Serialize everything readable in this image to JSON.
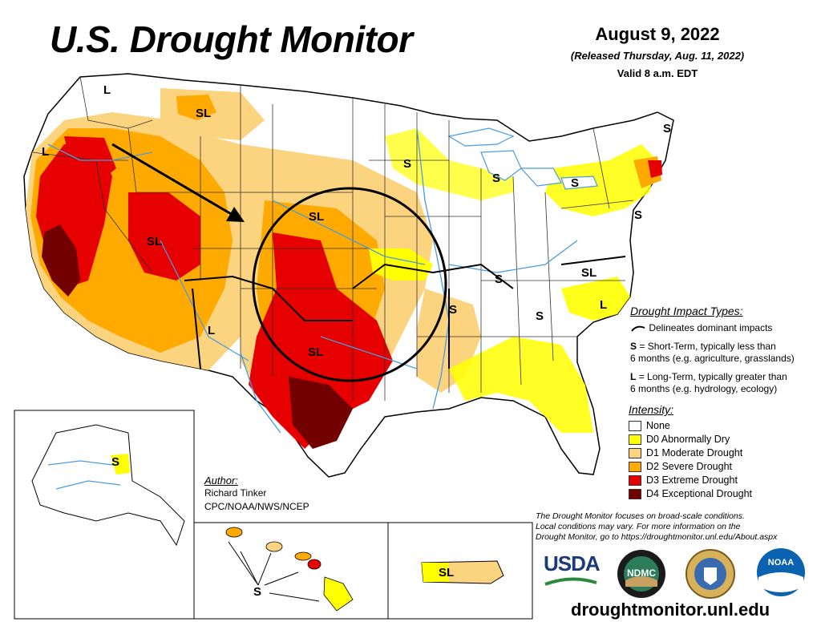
{
  "title": "U.S. Drought Monitor",
  "date": "August 9, 2022",
  "released": "(Released Thursday, Aug. 11, 2022)",
  "valid": "Valid 8 a.m. EDT",
  "impact_types": {
    "heading": "Drought Impact Types:",
    "delineates": "Delineates dominant impacts",
    "short_term_key": "S",
    "short_term_text": "= Short-Term, typically less than",
    "short_term_text2": "6 months (e.g. agriculture, grasslands)",
    "long_term_key": "L",
    "long_term_text": "= Long-Term, typically greater than",
    "long_term_text2": "6 months (e.g. hydrology, ecology)"
  },
  "intensity": {
    "heading": "Intensity:",
    "levels": [
      {
        "label": "None",
        "color": "#ffffff"
      },
      {
        "label": "D0 Abnormally Dry",
        "color": "#ffff00"
      },
      {
        "label": "D1 Moderate Drought",
        "color": "#fcd37f"
      },
      {
        "label": "D2 Severe Drought",
        "color": "#ffaa00"
      },
      {
        "label": "D3 Extreme Drought",
        "color": "#e60000"
      },
      {
        "label": "D4 Exceptional Drought",
        "color": "#730000"
      }
    ]
  },
  "author": {
    "heading": "Author:",
    "name": "Richard Tinker",
    "org": "CPC/NOAA/NWS/NCEP"
  },
  "footnote": {
    "line1": "The Drought Monitor focuses on broad-scale conditions.",
    "line2": "Local conditions may vary. For more information on the",
    "line3": "Drought Monitor, go to https://droughtmonitor.unl.edu/About.aspx"
  },
  "url": "droughtmonitor.unl.edu",
  "map_labels": {
    "l_nw_wa": "L",
    "sl_mt": "SL",
    "l_or": "L",
    "sl_nv_ut": "SL",
    "sl_ne_sd": "SL",
    "s_wi": "S",
    "s_mi": "S",
    "s_ny": "S",
    "s_ne": "S",
    "s_nj": "S",
    "s_oh": "S",
    "sl_va": "SL",
    "l_nc": "L",
    "s_ms": "S",
    "s_ga": "S",
    "l_nm": "L",
    "sl_ok_tx": "SL",
    "s_ak": "S",
    "s_hi": "S",
    "sl_pr": "SL"
  },
  "logos": {
    "usda": "USDA",
    "ndmc": "NDMC",
    "noaa": "NOAA"
  }
}
